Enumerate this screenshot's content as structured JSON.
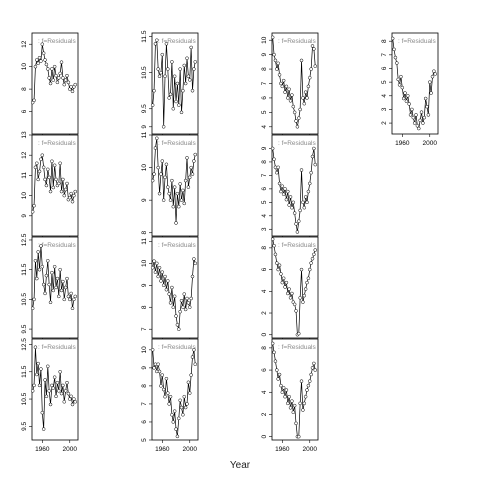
{
  "chart_data": {
    "type": "scatter",
    "xlabel": "Year",
    "panel_label": "f=Residuals",
    "xlim": [
      1945,
      2012
    ],
    "x_ticks": [
      1960,
      2000
    ],
    "x_tick_labels": [
      "1960",
      "2000"
    ],
    "panels": [
      {
        "col": 0,
        "row": 0,
        "ylim": [
          4,
          13
        ],
        "yticks": [
          6,
          8,
          10,
          12
        ],
        "x_axis_labels": false,
        "x": [
          1946,
          1948,
          1950,
          1952,
          1954,
          1956,
          1958,
          1960,
          1962,
          1964,
          1966,
          1968,
          1970,
          1972,
          1974,
          1976,
          1978,
          1980,
          1982,
          1984,
          1986,
          1988,
          1990,
          1992,
          1994,
          1996,
          1998,
          2000,
          2002,
          2004,
          2006,
          2008
        ],
        "y": [
          6.8,
          7.0,
          10.0,
          10.6,
          10.3,
          10.8,
          10.5,
          12.0,
          11.2,
          10.6,
          10.2,
          9.8,
          9.0,
          8.5,
          9.8,
          8.8,
          10.0,
          9.2,
          8.6,
          9.0,
          9.4,
          10.4,
          9.0,
          8.4,
          8.8,
          9.2,
          8.6,
          8.0,
          8.2,
          7.8,
          8.2,
          8.4
        ]
      },
      {
        "col": 0,
        "row": 1,
        "ylim": [
          8,
          13
        ],
        "yticks": [
          9,
          10,
          11,
          12,
          13
        ],
        "x_axis_labels": false,
        "x": [
          1946,
          1948,
          1950,
          1952,
          1954,
          1956,
          1958,
          1960,
          1962,
          1964,
          1966,
          1968,
          1970,
          1972,
          1974,
          1976,
          1978,
          1980,
          1982,
          1984,
          1986,
          1988,
          1990,
          1992,
          1994,
          1996,
          1998,
          2000,
          2002,
          2004,
          2006,
          2008
        ],
        "y": [
          9.2,
          9.5,
          11.4,
          11.6,
          10.8,
          11.2,
          11.8,
          12.0,
          11.4,
          10.8,
          10.5,
          11.3,
          10.9,
          10.2,
          11.7,
          10.4,
          11.5,
          10.8,
          10.5,
          10.6,
          11.6,
          10.2,
          10.8,
          10.0,
          10.3,
          10.6,
          9.8,
          9.9,
          10.1,
          9.7,
          10.0,
          10.2
        ]
      },
      {
        "col": 0,
        "row": 2,
        "ylim": [
          9.2,
          12.6
        ],
        "yticks": [
          9.5,
          10.5,
          11.5,
          12.5
        ],
        "x_axis_labels": false,
        "x": [
          1946,
          1948,
          1950,
          1952,
          1954,
          1956,
          1958,
          1960,
          1962,
          1964,
          1966,
          1968,
          1970,
          1972,
          1974,
          1976,
          1978,
          1980,
          1982,
          1984,
          1986,
          1988,
          1990,
          1992,
          1994,
          1996,
          1998,
          2000,
          2002,
          2004,
          2006,
          2008
        ],
        "y": [
          10.2,
          10.5,
          11.8,
          11.2,
          12.1,
          11.5,
          12.3,
          11.6,
          11.0,
          10.7,
          11.3,
          11.8,
          11.0,
          10.4,
          11.4,
          10.8,
          11.6,
          10.9,
          11.2,
          10.6,
          11.5,
          10.8,
          11.1,
          10.5,
          10.9,
          11.2,
          10.6,
          10.5,
          10.7,
          10.2,
          10.5,
          10.6
        ]
      },
      {
        "col": 0,
        "row": 3,
        "ylim": [
          9.0,
          12.7
        ],
        "yticks": [
          9.5,
          10.5,
          11.5,
          12.5
        ],
        "x_axis_labels": true,
        "x": [
          1946,
          1948,
          1950,
          1952,
          1954,
          1956,
          1958,
          1960,
          1962,
          1964,
          1966,
          1968,
          1970,
          1972,
          1974,
          1976,
          1978,
          1980,
          1982,
          1984,
          1986,
          1988,
          1990,
          1992,
          1994,
          1996,
          1998,
          2000,
          2002,
          2004,
          2006,
          2008
        ],
        "y": [
          10.8,
          11.0,
          12.4,
          11.4,
          11.8,
          11.0,
          11.6,
          10.0,
          9.4,
          11.2,
          10.6,
          11.7,
          10.8,
          10.3,
          11.0,
          10.9,
          11.3,
          10.6,
          11.1,
          10.8,
          11.5,
          10.7,
          11.0,
          10.4,
          10.8,
          11.1,
          10.7,
          10.5,
          10.6,
          10.3,
          10.5,
          10.4
        ]
      },
      {
        "col": 1,
        "row": 0,
        "ylim": [
          8.8,
          11.6
        ],
        "yticks": [
          9.0,
          9.5,
          10.5,
          11.5
        ],
        "x_axis_labels": false,
        "x": [
          1946,
          1948,
          1950,
          1952,
          1954,
          1956,
          1958,
          1960,
          1962,
          1964,
          1966,
          1968,
          1970,
          1972,
          1974,
          1976,
          1978,
          1980,
          1982,
          1984,
          1986,
          1988,
          1990,
          1992,
          1994,
          1996,
          1998,
          2000,
          2002,
          2004,
          2006,
          2008
        ],
        "y": [
          9.6,
          10.0,
          11.3,
          11.4,
          10.6,
          10.4,
          10.5,
          11.0,
          9.0,
          10.4,
          11.3,
          10.6,
          9.8,
          9.9,
          10.8,
          9.5,
          10.4,
          9.7,
          10.2,
          9.6,
          10.6,
          9.4,
          10.0,
          10.7,
          10.2,
          10.9,
          10.4,
          10.3,
          11.2,
          10.0,
          10.6,
          10.8
        ]
      },
      {
        "col": 1,
        "row": 1,
        "ylim": [
          7.9,
          11.0
        ],
        "yticks": [
          8.0,
          9.0,
          10.0,
          11.0
        ],
        "x_axis_labels": false,
        "x": [
          1946,
          1948,
          1950,
          1952,
          1954,
          1956,
          1958,
          1960,
          1962,
          1964,
          1966,
          1968,
          1970,
          1972,
          1974,
          1976,
          1978,
          1980,
          1982,
          1984,
          1986,
          1988,
          1990,
          1992,
          1994,
          1996,
          1998,
          2000,
          2002,
          2004,
          2006,
          2008
        ],
        "y": [
          9.6,
          9.8,
          10.6,
          10.9,
          10.0,
          9.2,
          9.8,
          10.2,
          9.0,
          9.7,
          10.1,
          9.4,
          9.2,
          9.0,
          9.6,
          8.8,
          9.4,
          8.3,
          9.2,
          8.8,
          9.5,
          9.0,
          9.3,
          8.9,
          9.6,
          10.3,
          9.4,
          9.7,
          10.0,
          9.8,
          10.2,
          10.4
        ]
      },
      {
        "col": 1,
        "row": 2,
        "ylim": [
          6.6,
          11.2
        ],
        "yticks": [
          7,
          8,
          9,
          10,
          11
        ],
        "x_axis_labels": false,
        "x": [
          1946,
          1948,
          1950,
          1952,
          1954,
          1956,
          1958,
          1960,
          1962,
          1964,
          1966,
          1968,
          1970,
          1972,
          1974,
          1976,
          1978,
          1980,
          1982,
          1984,
          1986,
          1988,
          1990,
          1992,
          1994,
          1996,
          1998,
          2000,
          2002,
          2004,
          2006,
          2008
        ],
        "y": [
          9.8,
          10.1,
          9.6,
          10.0,
          9.4,
          9.8,
          9.2,
          9.6,
          9.0,
          9.4,
          8.8,
          9.2,
          8.6,
          8.2,
          8.9,
          8.0,
          8.5,
          7.6,
          7.2,
          7.0,
          7.8,
          8.3,
          8.0,
          8.6,
          7.9,
          8.4,
          8.2,
          8.0,
          8.4,
          9.4,
          10.2,
          10.0
        ]
      },
      {
        "col": 1,
        "row": 3,
        "ylim": [
          5.0,
          10.6
        ],
        "yticks": [
          5,
          6,
          7,
          8,
          9,
          10
        ],
        "x_axis_labels": true,
        "x": [
          1946,
          1948,
          1950,
          1952,
          1954,
          1956,
          1958,
          1960,
          1962,
          1964,
          1966,
          1968,
          1970,
          1972,
          1974,
          1976,
          1978,
          1980,
          1982,
          1984,
          1986,
          1988,
          1990,
          1992,
          1994,
          1996,
          1998,
          2000,
          2002,
          2004,
          2006,
          2008
        ],
        "y": [
          10.0,
          9.0,
          9.2,
          8.8,
          9.2,
          8.8,
          8.0,
          8.6,
          7.8,
          7.4,
          8.4,
          7.6,
          7.0,
          7.4,
          6.4,
          6.0,
          6.6,
          5.6,
          5.2,
          6.2,
          7.2,
          6.8,
          6.4,
          7.4,
          6.8,
          7.0,
          8.2,
          7.6,
          8.6,
          9.6,
          10.0,
          9.2
        ]
      },
      {
        "col": 2,
        "row": 0,
        "ylim": [
          3.5,
          10.5
        ],
        "yticks": [
          4,
          5,
          6,
          7,
          8,
          9,
          10
        ],
        "x_axis_labels": false,
        "x": [
          1946,
          1948,
          1950,
          1952,
          1954,
          1956,
          1958,
          1960,
          1962,
          1964,
          1966,
          1968,
          1970,
          1972,
          1974,
          1976,
          1978,
          1980,
          1982,
          1984,
          1986,
          1988,
          1990,
          1992,
          1994,
          1996,
          1998,
          2000,
          2002,
          2004,
          2006,
          2008
        ],
        "y": [
          10.2,
          9.0,
          8.6,
          8.0,
          8.4,
          7.6,
          7.0,
          6.8,
          7.2,
          6.4,
          6.8,
          6.0,
          6.6,
          5.8,
          6.2,
          5.4,
          5.0,
          4.4,
          4.0,
          4.6,
          5.2,
          8.6,
          6.0,
          5.6,
          6.4,
          6.0,
          6.8,
          7.4,
          8.0,
          9.6,
          9.4,
          8.2
        ]
      },
      {
        "col": 2,
        "row": 1,
        "ylim": [
          2.5,
          10.0
        ],
        "yticks": [
          3,
          4,
          5,
          6,
          7,
          8,
          9
        ],
        "x_axis_labels": false,
        "x": [
          1946,
          1948,
          1950,
          1952,
          1954,
          1956,
          1958,
          1960,
          1962,
          1964,
          1966,
          1968,
          1970,
          1972,
          1974,
          1976,
          1978,
          1980,
          1982,
          1984,
          1986,
          1988,
          1990,
          1992,
          1994,
          1996,
          1998,
          2000,
          2002,
          2004,
          2006,
          2008
        ],
        "y": [
          9.0,
          8.2,
          7.6,
          7.2,
          7.6,
          6.4,
          5.8,
          6.2,
          5.6,
          6.0,
          5.2,
          5.8,
          4.8,
          5.4,
          4.6,
          5.0,
          4.2,
          3.4,
          2.8,
          3.6,
          4.4,
          7.4,
          5.0,
          4.6,
          5.4,
          5.0,
          5.8,
          6.4,
          7.2,
          8.4,
          9.0,
          7.8
        ]
      },
      {
        "col": 2,
        "row": 2,
        "ylim": [
          -0.3,
          9.0
        ],
        "yticks": [
          0,
          2,
          4,
          6,
          8
        ],
        "x_axis_labels": false,
        "x": [
          1946,
          1948,
          1950,
          1952,
          1954,
          1956,
          1958,
          1960,
          1962,
          1964,
          1966,
          1968,
          1970,
          1972,
          1974,
          1976,
          1978,
          1980,
          1982,
          1984,
          1986,
          1988,
          1990,
          1992,
          1994,
          1996,
          1998,
          2000,
          2002,
          2004,
          2006,
          2008
        ],
        "y": [
          8.8,
          8.2,
          7.4,
          6.6,
          6.0,
          6.4,
          5.6,
          4.8,
          5.2,
          4.4,
          4.8,
          3.8,
          4.2,
          3.4,
          3.8,
          3.0,
          2.8,
          2.2,
          0.0,
          0.1,
          3.4,
          6.0,
          3.0,
          3.6,
          4.2,
          4.8,
          5.2,
          6.0,
          6.6,
          7.0,
          7.4,
          7.8
        ]
      },
      {
        "col": 2,
        "row": 3,
        "ylim": [
          -0.3,
          8.8
        ],
        "yticks": [
          0,
          2,
          4,
          6,
          8
        ],
        "x_axis_labels": true,
        "x": [
          1946,
          1948,
          1950,
          1952,
          1954,
          1956,
          1958,
          1960,
          1962,
          1964,
          1966,
          1968,
          1970,
          1972,
          1974,
          1976,
          1978,
          1980,
          1982,
          1984,
          1986,
          1988,
          1990,
          1992,
          1994,
          1996,
          1998,
          2000,
          2002,
          2004,
          2006,
          2008
        ],
        "y": [
          8.4,
          7.6,
          6.8,
          6.0,
          5.2,
          5.6,
          4.6,
          4.0,
          4.4,
          3.6,
          4.2,
          3.0,
          3.6,
          2.6,
          3.2,
          2.2,
          2.8,
          1.2,
          0.0,
          0.0,
          3.0,
          5.0,
          2.4,
          3.0,
          3.6,
          4.2,
          4.6,
          5.0,
          5.6,
          6.2,
          6.6,
          6.0
        ]
      },
      {
        "col": 3,
        "row": 0,
        "ylim": [
          1.2,
          8.6
        ],
        "yticks": [
          2,
          3,
          4,
          5,
          6,
          7,
          8
        ],
        "x_axis_labels": true,
        "x": [
          1946,
          1948,
          1950,
          1952,
          1954,
          1956,
          1958,
          1960,
          1962,
          1964,
          1966,
          1968,
          1970,
          1972,
          1974,
          1976,
          1978,
          1980,
          1982,
          1984,
          1986,
          1988,
          1990,
          1992,
          1994,
          1996,
          1998,
          2000,
          2002,
          2004,
          2006,
          2008
        ],
        "y": [
          8.2,
          7.4,
          6.8,
          6.4,
          5.2,
          4.8,
          5.4,
          4.6,
          3.8,
          4.2,
          3.6,
          4.0,
          3.4,
          2.6,
          3.0,
          2.4,
          2.0,
          2.6,
          1.8,
          1.6,
          2.2,
          2.8,
          2.0,
          2.4,
          3.8,
          3.2,
          2.6,
          5.0,
          4.2,
          5.4,
          5.8,
          5.6
        ]
      }
    ]
  }
}
